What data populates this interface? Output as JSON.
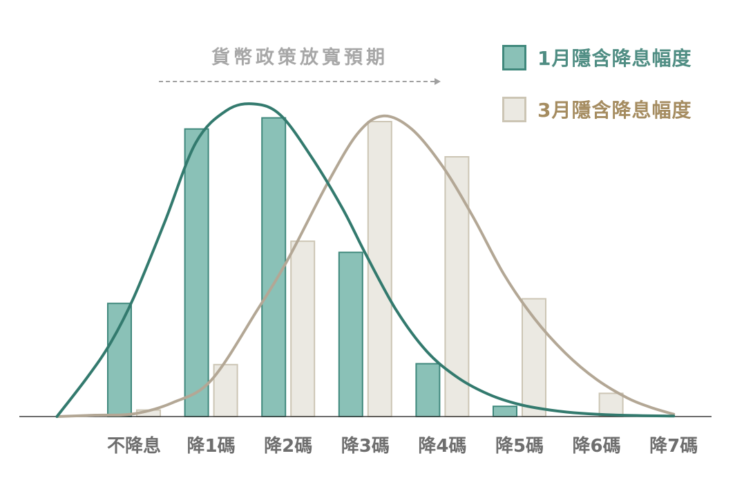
{
  "chart_data": {
    "type": "bar",
    "title": "",
    "categories": [
      "不降息",
      "降1碼",
      "降2碼",
      "降3碼",
      "降4碼",
      "降5碼",
      "降6碼",
      "降7碼"
    ],
    "series": [
      {
        "id": "jan",
        "name": "1月隱含降息幅度",
        "values": [
          12.2,
          31.0,
          32.2,
          17.7,
          5.7,
          1.1,
          0,
          0
        ],
        "fill": "#8ac1b7",
        "border": "#3f887c",
        "curve_color": "#337a6e",
        "label_color": "#4f8d83",
        "curve": [
          [
            -1.0,
            0
          ],
          [
            -0.6,
            4.3
          ],
          [
            -0.3,
            8.0
          ],
          [
            0,
            12.9
          ],
          [
            0.4,
            21.0
          ],
          [
            0.8,
            29.5
          ],
          [
            1.2,
            33.0
          ],
          [
            1.56,
            33.7
          ],
          [
            1.9,
            32.5
          ],
          [
            2.3,
            28.0
          ],
          [
            2.7,
            22.5
          ],
          [
            3.0,
            17.6
          ],
          [
            3.4,
            11.5
          ],
          [
            3.8,
            7.0
          ],
          [
            4.2,
            4.2
          ],
          [
            4.6,
            2.4
          ],
          [
            5.0,
            1.3
          ],
          [
            5.4,
            0.7
          ],
          [
            5.8,
            0.35
          ],
          [
            6.3,
            0.15
          ],
          [
            7.0,
            0.05
          ]
        ]
      },
      {
        "id": "mar",
        "name": "3月隱含降息幅度",
        "values": [
          0.7,
          5.6,
          18.9,
          31.8,
          28.0,
          12.7,
          2.5,
          0
        ],
        "fill": "#ebe9e2",
        "border": "#ccc5b4",
        "curve_color": "#b3a795",
        "label_color": "#a58c60",
        "curve": [
          [
            -1.0,
            0
          ],
          [
            -0.5,
            0.15
          ],
          [
            0,
            0.3
          ],
          [
            0.5,
            1.5
          ],
          [
            1.0,
            3.9
          ],
          [
            1.6,
            11.5
          ],
          [
            2.0,
            17.0
          ],
          [
            2.5,
            25.0
          ],
          [
            2.9,
            30.5
          ],
          [
            3.23,
            32.4
          ],
          [
            3.6,
            31.0
          ],
          [
            4.0,
            27.0
          ],
          [
            4.4,
            21.5
          ],
          [
            4.8,
            15.3
          ],
          [
            5.2,
            10.5
          ],
          [
            5.6,
            6.8
          ],
          [
            6.0,
            4.0
          ],
          [
            6.4,
            2.0
          ],
          [
            6.7,
            1.0
          ],
          [
            7.0,
            0.25
          ]
        ]
      }
    ],
    "annotation": {
      "text": "貨幣政策放寬預期",
      "text_color": "#a7a7a7",
      "arrow_color": "#a0a0a0",
      "arrow_style": "dashed-right"
    },
    "legend_position": "top-right",
    "grid": false,
    "xlabel": "",
    "ylabel": "",
    "y_axis": {
      "visible": false,
      "range": [
        0,
        35
      ],
      "unit": "percent-estimated"
    },
    "x_axis_color": "#3b3b3b",
    "x_label_color": "#6e6e6e",
    "values_note": "bar heights estimated from pixels; each series sums to ~100%"
  }
}
